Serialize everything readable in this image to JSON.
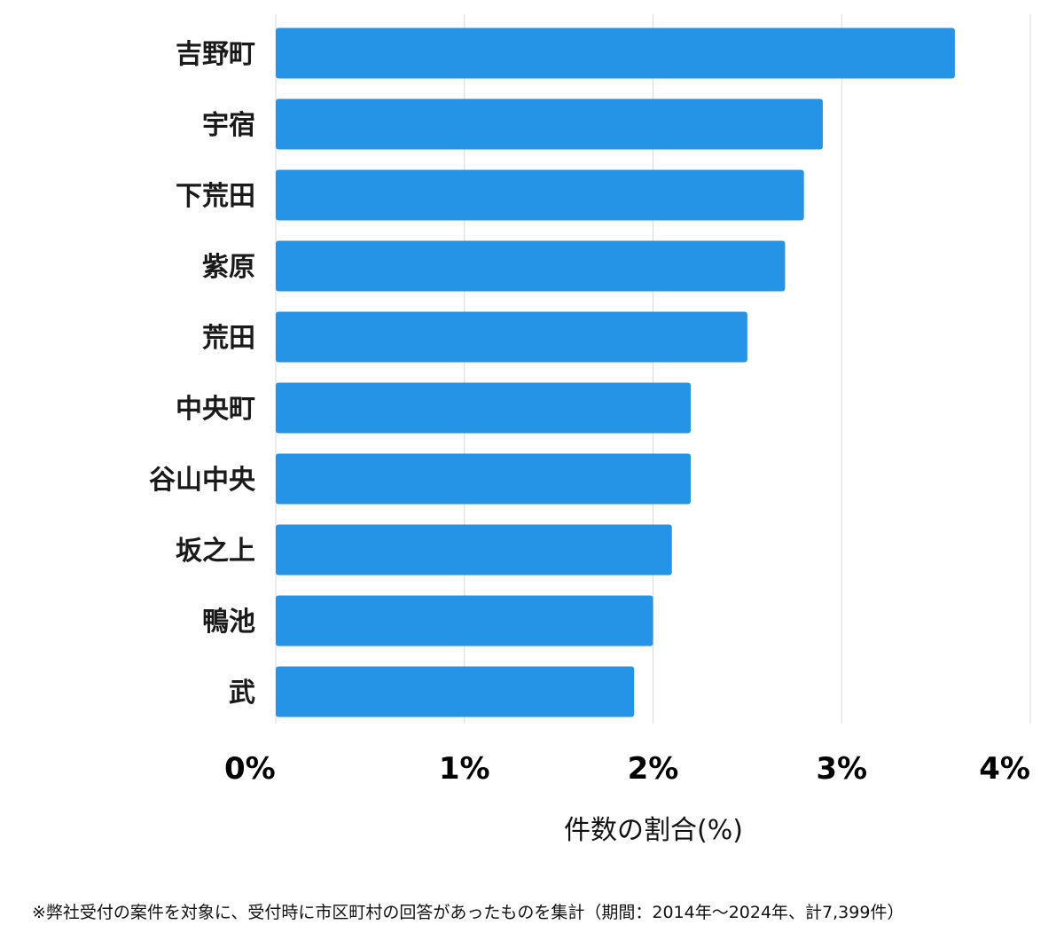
{
  "colors": {
    "bar": "#2594e6",
    "grid": "#d9d9d9",
    "text": "#1a1a1a"
  },
  "chart_data": {
    "type": "bar",
    "orientation": "horizontal",
    "categories": [
      "吉野町",
      "宇宿",
      "下荒田",
      "紫原",
      "荒田",
      "中央町",
      "谷山中央",
      "坂之上",
      "鴨池",
      "武"
    ],
    "values": [
      3.6,
      2.9,
      2.8,
      2.7,
      2.5,
      2.2,
      2.2,
      2.1,
      2.0,
      1.9
    ],
    "xlim": [
      0,
      4
    ],
    "xticks": [
      "0%",
      "1%",
      "2%",
      "3%",
      "4%"
    ],
    "xlabel": "件数の割合(%)",
    "ylabel": "",
    "grid": true
  },
  "footnote": "※弊社受付の案件を対象に、受付時に市区町村の回答があったものを集計（期間：2014年～2024年、計7,399件）"
}
